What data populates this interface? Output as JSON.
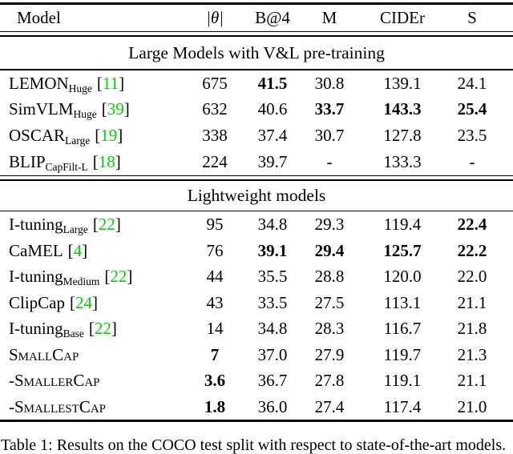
{
  "page": {
    "background": "#ffffff",
    "text_color": "#000000",
    "citation_color": "#00d200"
  },
  "table": {
    "columns": [
      "Model",
      "|θ|",
      "B@4",
      "M",
      "CIDEr",
      "S"
    ],
    "sections": [
      {
        "header": "Large Models with V&L pre-training",
        "rows": [
          {
            "model": {
              "name": "LEMON",
              "sub": "Huge",
              "cite": "11"
            },
            "values": [
              "675",
              "41.5",
              "30.8",
              "139.1",
              "24.1"
            ],
            "bold": [
              false,
              true,
              false,
              false,
              false
            ]
          },
          {
            "model": {
              "name": "SimVLM",
              "sub": "Huge",
              "cite": "39"
            },
            "values": [
              "632",
              "40.6",
              "33.7",
              "143.3",
              "25.4"
            ],
            "bold": [
              false,
              false,
              true,
              true,
              true
            ]
          },
          {
            "model": {
              "name": "OSCAR",
              "sub": "Large",
              "cite": "19"
            },
            "values": [
              "338",
              "37.4",
              "30.7",
              "127.8",
              "23.5"
            ],
            "bold": [
              false,
              false,
              false,
              false,
              false
            ]
          },
          {
            "model": {
              "name": "BLIP",
              "sub": "CapFilt-L",
              "cite": "18"
            },
            "values": [
              "224",
              "39.7",
              "-",
              "133.3",
              "-"
            ],
            "bold": [
              false,
              false,
              false,
              false,
              false
            ]
          }
        ]
      },
      {
        "header": "Lightweight models",
        "rows": [
          {
            "model": {
              "name": "I-tuning",
              "sub": "Large",
              "cite": "22"
            },
            "values": [
              "95",
              "34.8",
              "29.3",
              "119.4",
              "22.4"
            ],
            "bold": [
              false,
              false,
              false,
              false,
              true
            ]
          },
          {
            "model": {
              "name": "CaMEL",
              "cite": "4"
            },
            "values": [
              "76",
              "39.1",
              "29.4",
              "125.7",
              "22.2"
            ],
            "bold": [
              false,
              true,
              true,
              true,
              true
            ]
          },
          {
            "model": {
              "name": "I-tuning",
              "sub": "Medium",
              "cite": "22"
            },
            "values": [
              "44",
              "35.5",
              "28.8",
              "120.0",
              "22.0"
            ],
            "bold": [
              false,
              false,
              false,
              false,
              false
            ]
          },
          {
            "model": {
              "name": "ClipCap",
              "cite": "24"
            },
            "values": [
              "43",
              "33.5",
              "27.5",
              "113.1",
              "21.1"
            ],
            "bold": [
              false,
              false,
              false,
              false,
              false
            ]
          },
          {
            "model": {
              "name": "I-tuning",
              "sub": "Base",
              "cite": "22"
            },
            "values": [
              "14",
              "34.8",
              "28.3",
              "116.7",
              "21.8"
            ],
            "bold": [
              false,
              false,
              false,
              false,
              false
            ]
          },
          {
            "model": {
              "name": "SmallCap",
              "smallcaps": true
            },
            "values": [
              "7",
              "37.0",
              "27.9",
              "119.7",
              "21.3"
            ],
            "bold": [
              true,
              false,
              false,
              false,
              false
            ]
          },
          {
            "model": {
              "name": "-SmallerCap",
              "smallcaps": true
            },
            "values": [
              "3.6",
              "36.7",
              "27.8",
              "119.1",
              "21.1"
            ],
            "bold": [
              true,
              false,
              false,
              false,
              false
            ]
          },
          {
            "model": {
              "name": "-SmallestCap",
              "smallcaps": true
            },
            "values": [
              "1.8",
              "36.0",
              "27.4",
              "117.4",
              "21.0"
            ],
            "bold": [
              true,
              false,
              false,
              false,
              false
            ]
          }
        ]
      }
    ],
    "caption": "Table 1: Results on the COCO test split with respect to state-of-the-art models."
  }
}
